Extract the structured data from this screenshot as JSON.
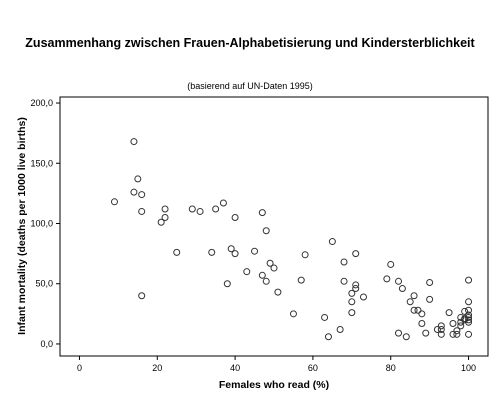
{
  "chart_data": {
    "type": "scatter",
    "title": "Zusammenhang zwischen Frauen-Alphabetisierung und Kindersterblichkeit",
    "subtitle": "(basierend auf UN-Daten 1995)",
    "xlabel": "Females who read (%)",
    "ylabel": "Infant mortality (deaths per 1000 live births)",
    "xlim": [
      -5,
      105
    ],
    "ylim": [
      -10,
      205
    ],
    "xticks": [
      0,
      20,
      40,
      60,
      80,
      100
    ],
    "yticks": [
      0,
      50,
      100,
      150,
      200
    ],
    "xtick_labels": [
      "0",
      "20",
      "40",
      "60",
      "80",
      "100"
    ],
    "ytick_labels": [
      "0,0",
      "50,0",
      "100,0",
      "150,0",
      "200,0"
    ],
    "grid": false,
    "points": [
      [
        9,
        118
      ],
      [
        14,
        168
      ],
      [
        14,
        126
      ],
      [
        15,
        137
      ],
      [
        16,
        124
      ],
      [
        16,
        110
      ],
      [
        16,
        40
      ],
      [
        21,
        101
      ],
      [
        22,
        105
      ],
      [
        22,
        112
      ],
      [
        25,
        76
      ],
      [
        29,
        112
      ],
      [
        31,
        110
      ],
      [
        34,
        76
      ],
      [
        35,
        112
      ],
      [
        37,
        117
      ],
      [
        38,
        50
      ],
      [
        39,
        79
      ],
      [
        40,
        105
      ],
      [
        40,
        75
      ],
      [
        43,
        60
      ],
      [
        45,
        77
      ],
      [
        47,
        109
      ],
      [
        47,
        57
      ],
      [
        48,
        94
      ],
      [
        48,
        52
      ],
      [
        49,
        67
      ],
      [
        50,
        63
      ],
      [
        51,
        43
      ],
      [
        55,
        25
      ],
      [
        57,
        53
      ],
      [
        58,
        74
      ],
      [
        63,
        22
      ],
      [
        64,
        6
      ],
      [
        65,
        85
      ],
      [
        67,
        12
      ],
      [
        68,
        68
      ],
      [
        68,
        52
      ],
      [
        70,
        26
      ],
      [
        70,
        35
      ],
      [
        70,
        42
      ],
      [
        71,
        75
      ],
      [
        71,
        49
      ],
      [
        71,
        46
      ],
      [
        73,
        39
      ],
      [
        79,
        54
      ],
      [
        80,
        66
      ],
      [
        82,
        52
      ],
      [
        82,
        9
      ],
      [
        83,
        46
      ],
      [
        84,
        6
      ],
      [
        85,
        35
      ],
      [
        86,
        40
      ],
      [
        86,
        28
      ],
      [
        87,
        28
      ],
      [
        88,
        17
      ],
      [
        88,
        25
      ],
      [
        89,
        9
      ],
      [
        90,
        51
      ],
      [
        90,
        37
      ],
      [
        92,
        12
      ],
      [
        93,
        15
      ],
      [
        93,
        8
      ],
      [
        93,
        12
      ],
      [
        95,
        26
      ],
      [
        96,
        17
      ],
      [
        96,
        8
      ],
      [
        97,
        11
      ],
      [
        97,
        8
      ],
      [
        98,
        15
      ],
      [
        98,
        22
      ],
      [
        98,
        18
      ],
      [
        99,
        27
      ],
      [
        99,
        20
      ],
      [
        99,
        21
      ],
      [
        100,
        53
      ],
      [
        100,
        35
      ],
      [
        100,
        28
      ],
      [
        100,
        24
      ],
      [
        100,
        20
      ],
      [
        100,
        18
      ],
      [
        100,
        22
      ],
      [
        100,
        8
      ]
    ]
  }
}
